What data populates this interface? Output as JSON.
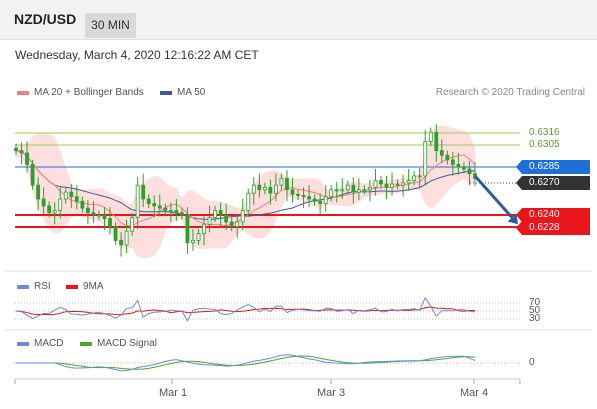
{
  "header": {
    "pair": "NZD/USD",
    "timeframe": "30 MIN"
  },
  "datetime": "Wednesday, March 4, 2020 12:16:22 AM CET",
  "legend": {
    "ma20": "MA 20 + Bollinger Bands",
    "ma50": "MA 50",
    "research": "Research © 2020 Trading Central"
  },
  "colors": {
    "ma20": "#f08080",
    "ma50": "#3a5aa5",
    "band": "#ffd0d0",
    "resistance_green": "#9acd5a",
    "pivot_blue": "#1e6fd8",
    "support_red": "#e8151b",
    "current": "#333333",
    "arrow": "#2f5a9e",
    "candle": "#2e9e2e",
    "rsi": "#6b8ad8",
    "rsi_ma": "#e8151b",
    "macd": "#6b8ad8",
    "macd_signal": "#4aa82a"
  },
  "chart_data": {
    "type": "candlestick",
    "levels": [
      {
        "value": "0.6316",
        "kind": "resistance"
      },
      {
        "value": "0.6305",
        "kind": "resistance"
      },
      {
        "value": "0.6285",
        "kind": "pivot"
      },
      {
        "value": "0.6270",
        "kind": "current"
      },
      {
        "value": "0.6240",
        "kind": "support"
      },
      {
        "value": "0.6228",
        "kind": "support"
      }
    ],
    "ylim": [
      0.619,
      0.6336
    ],
    "price": [
      0.6292,
      0.629,
      0.628,
      0.6262,
      0.625,
      0.6244,
      0.6238,
      0.624,
      0.625,
      0.6256,
      0.6252,
      0.6248,
      0.6242,
      0.6238,
      0.6236,
      0.6236,
      0.6233,
      0.6226,
      0.6214,
      0.621,
      0.6222,
      0.6234,
      0.6262,
      0.625,
      0.6246,
      0.6244,
      0.6242,
      0.624,
      0.624,
      0.6238,
      0.6236,
      0.6212,
      0.6214,
      0.622,
      0.6228,
      0.6234,
      0.624,
      0.6236,
      0.623,
      0.6226,
      0.623,
      0.624,
      0.6255,
      0.6262,
      0.6258,
      0.626,
      0.6255,
      0.6262,
      0.6268,
      0.6258,
      0.6254,
      0.6253,
      0.6252,
      0.625,
      0.6248,
      0.6246,
      0.6252,
      0.6258,
      0.6257,
      0.6258,
      0.6262,
      0.6256,
      0.6258,
      0.6258,
      0.626,
      0.6266,
      0.6263,
      0.626,
      0.6263,
      0.6262,
      0.6264,
      0.6266,
      0.627,
      0.627,
      0.63,
      0.6308,
      0.6292,
      0.6288,
      0.6284,
      0.628,
      0.6278,
      0.6276,
      0.6272,
      0.6268
    ],
    "forecast": [
      0.627,
      0.6228
    ],
    "rsi": {
      "name": "RSI",
      "ma_name": "9MA",
      "ticks": [
        "70",
        "50",
        "30"
      ],
      "ylim": [
        20,
        80
      ]
    },
    "macd": {
      "name": "MACD",
      "signal_name": "MACD Signal",
      "ticks": [
        "0"
      ]
    },
    "x_labels": [
      "Mar 1",
      "Mar 3",
      "Mar 4"
    ]
  }
}
